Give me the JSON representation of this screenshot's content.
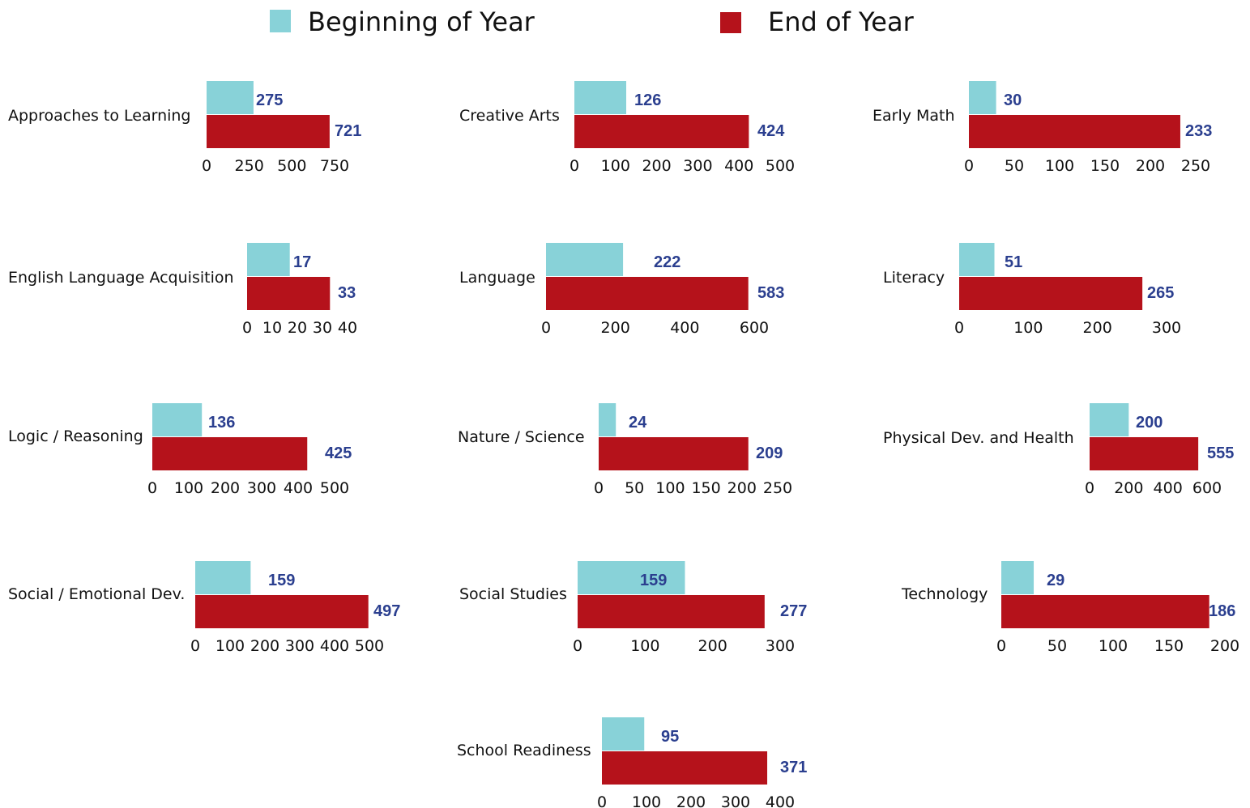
{
  "legend": {
    "items": [
      {
        "label": "Beginning of Year",
        "color": "#88d2d8"
      },
      {
        "label": "End of Year",
        "color": "#b5121b"
      }
    ]
  },
  "chart_data": [
    {
      "type": "bar",
      "category": "Approaches to Learning",
      "series": [
        {
          "name": "Beginning of Year",
          "values": [
            275
          ]
        },
        {
          "name": "End of Year",
          "values": [
            721
          ]
        }
      ],
      "xlim": [
        0,
        750
      ],
      "ticks": [
        "0",
        "250",
        "500",
        "750"
      ]
    },
    {
      "type": "bar",
      "category": "Creative Arts",
      "series": [
        {
          "name": "Beginning of Year",
          "values": [
            126
          ]
        },
        {
          "name": "End of Year",
          "values": [
            424
          ]
        }
      ],
      "xlim": [
        0,
        500
      ],
      "ticks": [
        "0",
        "100",
        "200",
        "300",
        "400",
        "500"
      ]
    },
    {
      "type": "bar",
      "category": "Early Math",
      "series": [
        {
          "name": "Beginning of Year",
          "values": [
            30
          ]
        },
        {
          "name": "End of Year",
          "values": [
            233
          ]
        }
      ],
      "xlim": [
        0,
        250
      ],
      "ticks": [
        "0",
        "50",
        "100",
        "150",
        "200",
        "250"
      ]
    },
    {
      "type": "bar",
      "category": "English Language Acquisition",
      "series": [
        {
          "name": "Beginning of Year",
          "values": [
            17
          ]
        },
        {
          "name": "End of Year",
          "values": [
            33
          ]
        }
      ],
      "xlim": [
        0,
        40
      ],
      "ticks": [
        "0",
        "10",
        "20",
        "30",
        "40"
      ]
    },
    {
      "type": "bar",
      "category": "Language",
      "series": [
        {
          "name": "Beginning of Year",
          "values": [
            222
          ]
        },
        {
          "name": "End of Year",
          "values": [
            583
          ]
        }
      ],
      "xlim": [
        0,
        600
      ],
      "ticks": [
        "0",
        "200",
        "400",
        "600"
      ]
    },
    {
      "type": "bar",
      "category": "Literacy",
      "series": [
        {
          "name": "Beginning of Year",
          "values": [
            51
          ]
        },
        {
          "name": "End of Year",
          "values": [
            265
          ]
        }
      ],
      "xlim": [
        0,
        300
      ],
      "ticks": [
        "0",
        "100",
        "200",
        "300"
      ]
    },
    {
      "type": "bar",
      "category": "Logic / Reasoning",
      "series": [
        {
          "name": "Beginning of Year",
          "values": [
            136
          ]
        },
        {
          "name": "End of Year",
          "values": [
            425
          ]
        }
      ],
      "xlim": [
        0,
        500
      ],
      "ticks": [
        "0",
        "100",
        "200",
        "300",
        "400",
        "500"
      ]
    },
    {
      "type": "bar",
      "category": "Nature / Science",
      "series": [
        {
          "name": "Beginning of Year",
          "values": [
            24
          ]
        },
        {
          "name": "End of Year",
          "values": [
            209
          ]
        }
      ],
      "xlim": [
        0,
        250
      ],
      "ticks": [
        "0",
        "50",
        "100",
        "150",
        "200",
        "250"
      ]
    },
    {
      "type": "bar",
      "category": "Physical Dev. and Health",
      "series": [
        {
          "name": "Beginning of Year",
          "values": [
            200
          ]
        },
        {
          "name": "End of Year",
          "values": [
            555
          ]
        }
      ],
      "xlim": [
        0,
        600
      ],
      "ticks": [
        "0",
        "200",
        "400",
        "600"
      ]
    },
    {
      "type": "bar",
      "category": "Social / Emotional Dev.",
      "series": [
        {
          "name": "Beginning of Year",
          "values": [
            159
          ]
        },
        {
          "name": "End of Year",
          "values": [
            497
          ]
        }
      ],
      "xlim": [
        0,
        500
      ],
      "ticks": [
        "0",
        "100",
        "200",
        "300",
        "400",
        "500"
      ]
    },
    {
      "type": "bar",
      "category": "Social Studies",
      "series": [
        {
          "name": "Beginning of Year",
          "values": [
            159
          ]
        },
        {
          "name": "End of Year",
          "values": [
            277
          ]
        }
      ],
      "xlim": [
        0,
        300
      ],
      "ticks": [
        "0",
        "100",
        "200",
        "300"
      ]
    },
    {
      "type": "bar",
      "category": "Technology",
      "series": [
        {
          "name": "Beginning of Year",
          "values": [
            29
          ]
        },
        {
          "name": "End of Year",
          "values": [
            186
          ]
        }
      ],
      "xlim": [
        0,
        200
      ],
      "ticks": [
        "0",
        "50",
        "100",
        "150",
        "200"
      ]
    },
    {
      "type": "bar",
      "category": "School Readiness",
      "series": [
        {
          "name": "Beginning of Year",
          "values": [
            95
          ]
        },
        {
          "name": "End of Year",
          "values": [
            371
          ]
        }
      ],
      "xlim": [
        0,
        400
      ],
      "ticks": [
        "0",
        "100",
        "200",
        "300",
        "400"
      ]
    }
  ]
}
